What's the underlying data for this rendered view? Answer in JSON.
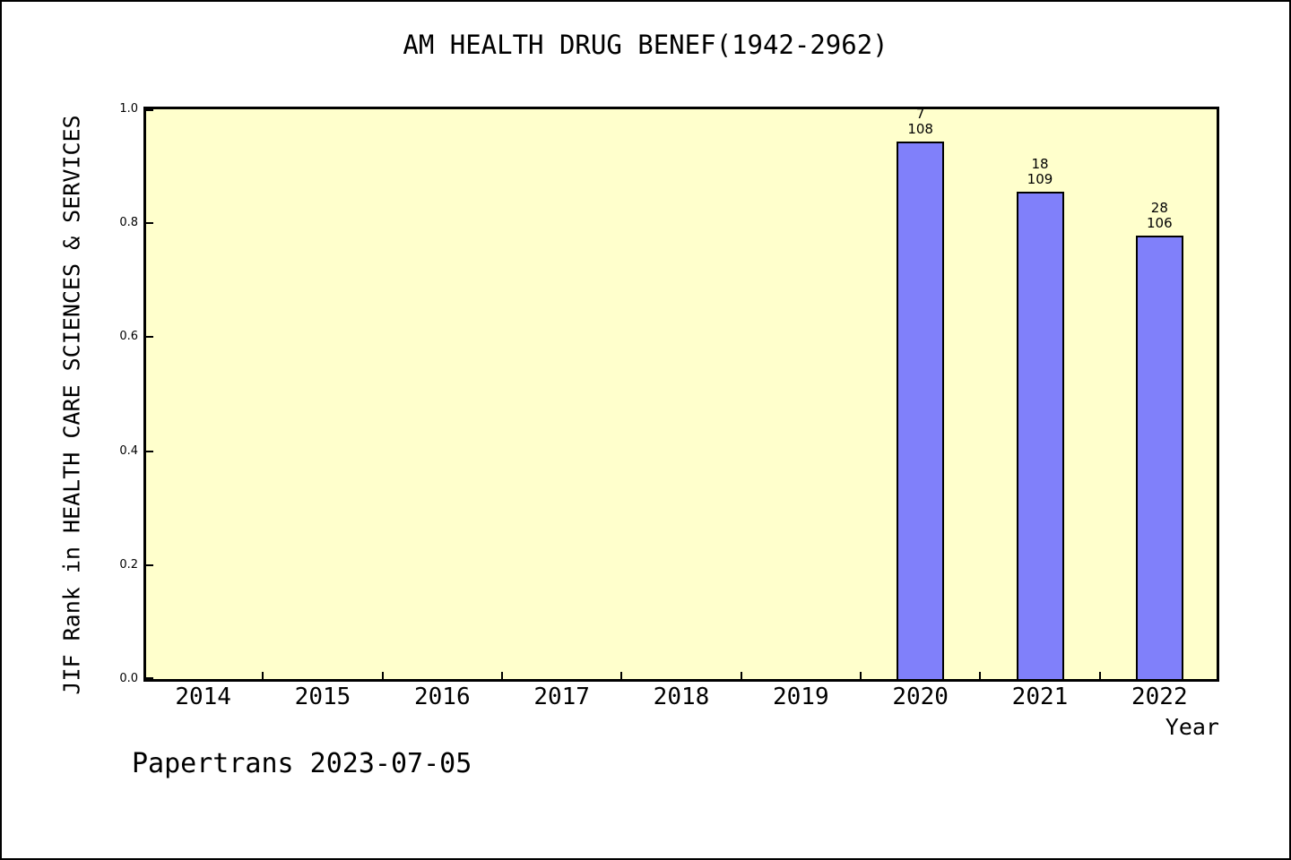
{
  "page": {
    "footer": "Papertrans 2023-07-05"
  },
  "chart_data": {
    "type": "bar",
    "title": "AM HEALTH DRUG BENEF(1942-2962)",
    "xlabel": "Year",
    "ylabel": "JIF Rank in HEALTH CARE SCIENCES & SERVICES",
    "ylim": [
      0.0,
      1.0
    ],
    "yticks": [
      "0.0",
      "0.2",
      "0.4",
      "0.6",
      "0.8",
      "1.0"
    ],
    "categories": [
      "2014",
      "2015",
      "2016",
      "2017",
      "2018",
      "2019",
      "2020",
      "2021",
      "2022"
    ],
    "values": [
      null,
      null,
      null,
      null,
      null,
      null,
      0.944,
      0.855,
      0.779
    ],
    "bars": [
      {
        "category": "2020",
        "value": 0.944,
        "rank": "7",
        "total": "108"
      },
      {
        "category": "2021",
        "value": 0.855,
        "rank": "18",
        "total": "109"
      },
      {
        "category": "2022",
        "value": 0.779,
        "rank": "28",
        "total": "106"
      }
    ],
    "grid": false,
    "legend_position": "none",
    "x_ticks_at_category_boundaries": true,
    "colors": {
      "bar_fill": "#8080fa",
      "bar_edge": "#000000",
      "plot_bg": "#ffffcc",
      "page_bg": "#ffffff"
    }
  }
}
